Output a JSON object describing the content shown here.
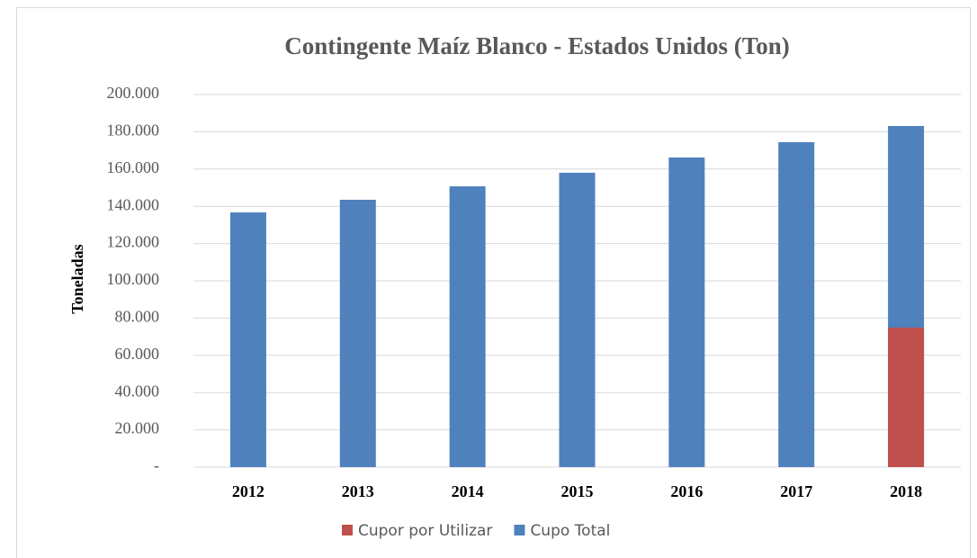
{
  "chart_data": {
    "type": "bar",
    "title": "Contingente Maíz Blanco - Estados Unidos (Ton)",
    "y_label": "Toneladas",
    "categories": [
      "2012",
      "2013",
      "2014",
      "2015",
      "2016",
      "2017",
      "2018"
    ],
    "series": [
      {
        "name": "Cupor por Utilizar",
        "color": "#c0504d",
        "values": [
          null,
          null,
          null,
          null,
          null,
          null,
          74900
        ]
      },
      {
        "name": "Cupo Total",
        "color": "#4f81bd",
        "values": [
          136700,
          143500,
          150700,
          158000,
          166200,
          174400,
          183100
        ]
      }
    ],
    "ylim": [
      0,
      200000
    ],
    "yticks": [
      {
        "value": 0,
        "label": "-"
      },
      {
        "value": 20000,
        "label": "20.000"
      },
      {
        "value": 40000,
        "label": "40.000"
      },
      {
        "value": 60000,
        "label": "60.000"
      },
      {
        "value": 80000,
        "label": "80.000"
      },
      {
        "value": 100000,
        "label": "100.000"
      },
      {
        "value": 120000,
        "label": "120.000"
      },
      {
        "value": 140000,
        "label": "140.000"
      },
      {
        "value": 160000,
        "label": "160.000"
      },
      {
        "value": 180000,
        "label": "180.000"
      },
      {
        "value": 200000,
        "label": "200.000"
      }
    ],
    "grid": true,
    "legend": "bottom"
  }
}
